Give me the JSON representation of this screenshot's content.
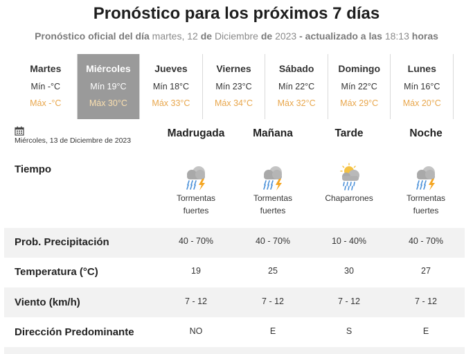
{
  "header": {
    "title": "Pronóstico para los próximos 7 días",
    "subtitle_prefix": "Pronóstico oficial del día",
    "subtitle_weekday": "martes, 12",
    "subtitle_de1": "de",
    "subtitle_month": "Diciembre",
    "subtitle_de2": "de",
    "subtitle_year": "2023",
    "subtitle_updated": "- actualizado a las",
    "subtitle_time": "18:13",
    "subtitle_hours": "horas"
  },
  "days": [
    {
      "name": "Martes",
      "min": "Mín -°C",
      "max": "Máx -°C"
    },
    {
      "name": "Miércoles",
      "min": "Mín 19°C",
      "max": "Máx 30°C"
    },
    {
      "name": "Jueves",
      "min": "Mín 18°C",
      "max": "Máx 33°C"
    },
    {
      "name": "Viernes",
      "min": "Mín 23°C",
      "max": "Máx 34°C"
    },
    {
      "name": "Sábado",
      "min": "Mín 22°C",
      "max": "Máx 32°C"
    },
    {
      "name": "Domingo",
      "min": "Mín 22°C",
      "max": "Máx 29°C"
    },
    {
      "name": "Lunes",
      "min": "Mín 16°C",
      "max": "Máx 20°C"
    }
  ],
  "selected_day_index": 1,
  "date_label": "Miércoles, 13 de Diciembre de 2023",
  "calendar_icon": "calendar-icon",
  "periods": [
    "Madrugada",
    "Mañana",
    "Tarde",
    "Noche"
  ],
  "rows": {
    "tiempo_label": "Tiempo",
    "weather": [
      {
        "icon": "storm-cloud-icon",
        "line1": "Tormentas",
        "line2": "fuertes"
      },
      {
        "icon": "storm-cloud-icon",
        "line1": "Tormentas",
        "line2": "fuertes"
      },
      {
        "icon": "sun-rain-cloud-icon",
        "line1": "Chaparrones",
        "line2": ""
      },
      {
        "icon": "storm-cloud-icon",
        "line1": "Tormentas",
        "line2": "fuertes"
      }
    ],
    "precip_label": "Prob. Precipitación",
    "precip": [
      "40 - 70%",
      "40 - 70%",
      "10 - 40%",
      "40 - 70%"
    ],
    "temp_label": "Temperatura (°C)",
    "temp": [
      "19",
      "25",
      "30",
      "27"
    ],
    "wind_label": "Viento (km/h)",
    "wind": [
      "7 - 12",
      "7 - 12",
      "7 - 12",
      "7 - 12"
    ],
    "dir_label": "Dirección Predominante",
    "dir": [
      "NO",
      "E",
      "S",
      "E"
    ]
  },
  "colors": {
    "selected_day_bg": "#9a9a9a",
    "max_temp": "#e8a64b",
    "band_bg": "#f2f2f2"
  }
}
